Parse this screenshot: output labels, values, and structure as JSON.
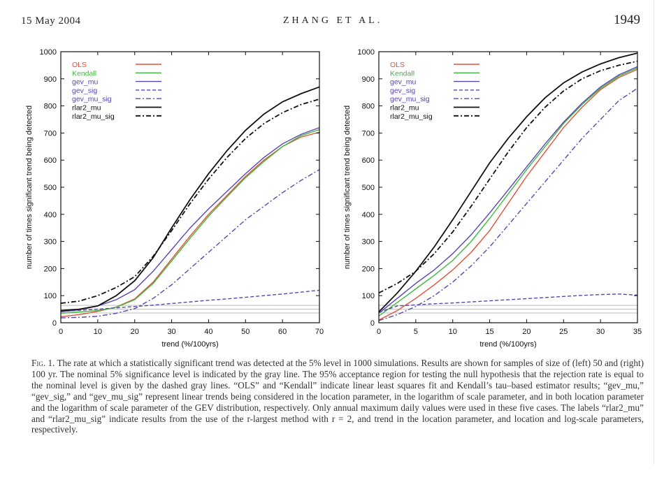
{
  "header": {
    "date": "15 May 2004",
    "authors": "ZHANG ET AL.",
    "page_number": "1949"
  },
  "colors": {
    "OLS": "#e0533a",
    "Kendall": "#3dbb3d",
    "gev": "#5a45b5",
    "rlar2": "#111111",
    "gray_lines": "#bdbdbd"
  },
  "chart_data": [
    {
      "type": "line",
      "xlabel": "trend (%/100yrs)",
      "ylabel": "number of times significant trend being detected",
      "xlim": [
        0,
        70
      ],
      "ylim": [
        0,
        1000
      ],
      "xticks": [
        0,
        10,
        20,
        30,
        40,
        50,
        60,
        70
      ],
      "yticks": [
        0,
        100,
        200,
        300,
        400,
        500,
        600,
        700,
        800,
        900,
        1000
      ],
      "gray_lines": [
        36,
        50,
        64
      ],
      "legend_position": "top-left",
      "series": [
        {
          "name": "OLS",
          "color_key": "OLS",
          "dash": "solid",
          "x": [
            0,
            5,
            10,
            15,
            20,
            25,
            30,
            35,
            40,
            45,
            50,
            55,
            60,
            65,
            70
          ],
          "y": [
            22,
            30,
            42,
            58,
            88,
            150,
            235,
            320,
            400,
            470,
            540,
            600,
            650,
            685,
            703
          ]
        },
        {
          "name": "Kendall",
          "color_key": "Kendall",
          "dash": "solid",
          "x": [
            0,
            5,
            10,
            15,
            20,
            25,
            30,
            35,
            40,
            45,
            50,
            55,
            60,
            65,
            70
          ],
          "y": [
            35,
            40,
            45,
            57,
            85,
            145,
            228,
            312,
            393,
            465,
            535,
            595,
            650,
            690,
            713
          ]
        },
        {
          "name": "gev_mu",
          "color_key": "gev",
          "dash": "solid",
          "x": [
            0,
            5,
            10,
            15,
            20,
            25,
            30,
            35,
            40,
            45,
            50,
            55,
            60,
            65,
            70
          ],
          "y": [
            40,
            48,
            62,
            85,
            122,
            190,
            270,
            350,
            420,
            485,
            550,
            610,
            660,
            695,
            720
          ]
        },
        {
          "name": "gev_sig",
          "color_key": "gev",
          "dash": "dashed",
          "x": [
            0,
            5,
            10,
            15,
            20,
            25,
            30,
            35,
            40,
            45,
            50,
            55,
            60,
            65,
            70
          ],
          "y": [
            42,
            46,
            50,
            55,
            60,
            65,
            71,
            77,
            83,
            88,
            94,
            100,
            106,
            113,
            120
          ]
        },
        {
          "name": "gev_mu_sig",
          "color_key": "gev",
          "dash": "dashdot",
          "x": [
            0,
            5,
            10,
            15,
            20,
            25,
            30,
            35,
            40,
            45,
            50,
            55,
            60,
            65,
            70
          ],
          "y": [
            18,
            20,
            24,
            35,
            52,
            90,
            140,
            200,
            260,
            320,
            380,
            430,
            480,
            525,
            565
          ]
        },
        {
          "name": "rlar2_mu",
          "color_key": "rlar2",
          "dash": "solid",
          "x": [
            0,
            5,
            10,
            15,
            20,
            25,
            30,
            35,
            40,
            45,
            50,
            55,
            60,
            65,
            70
          ],
          "y": [
            45,
            50,
            62,
            100,
            155,
            240,
            350,
            455,
            550,
            635,
            710,
            770,
            815,
            845,
            870
          ]
        },
        {
          "name": "rlar2_mu_sig",
          "color_key": "rlar2",
          "dash": "dashdot",
          "x": [
            0,
            5,
            10,
            15,
            20,
            25,
            30,
            35,
            40,
            45,
            50,
            55,
            60,
            65,
            70
          ],
          "y": [
            72,
            80,
            100,
            130,
            170,
            245,
            340,
            440,
            530,
            610,
            680,
            735,
            775,
            805,
            825
          ]
        }
      ]
    },
    {
      "type": "line",
      "xlabel": "trend (%/100yrs)",
      "ylabel": "number of times significant trend being detected",
      "xlim": [
        0,
        35
      ],
      "ylim": [
        0,
        1000
      ],
      "xticks": [
        0,
        5,
        10,
        15,
        20,
        25,
        30,
        35
      ],
      "yticks": [
        0,
        100,
        200,
        300,
        400,
        500,
        600,
        700,
        800,
        900,
        1000
      ],
      "gray_lines": [
        36,
        50,
        64
      ],
      "legend_position": "top-left",
      "series": [
        {
          "name": "OLS",
          "color_key": "OLS",
          "dash": "solid",
          "x": [
            0,
            2.5,
            5,
            7.5,
            10,
            12.5,
            15,
            17.5,
            20,
            22.5,
            25,
            27.5,
            30,
            32.5,
            35
          ],
          "y": [
            10,
            45,
            90,
            140,
            195,
            260,
            340,
            440,
            540,
            630,
            720,
            795,
            860,
            905,
            935
          ]
        },
        {
          "name": "Kendall",
          "color_key": "Kendall",
          "dash": "solid",
          "x": [
            0,
            2.5,
            5,
            7.5,
            10,
            12.5,
            15,
            17.5,
            20,
            22.5,
            25,
            27.5,
            30,
            32.5,
            35
          ],
          "y": [
            25,
            75,
            125,
            175,
            230,
            300,
            385,
            475,
            565,
            650,
            735,
            805,
            865,
            910,
            940
          ]
        },
        {
          "name": "gev_mu",
          "color_key": "gev",
          "dash": "solid",
          "x": [
            0,
            2.5,
            5,
            7.5,
            10,
            12.5,
            15,
            17.5,
            20,
            22.5,
            25,
            27.5,
            30,
            32.5,
            35
          ],
          "y": [
            35,
            90,
            145,
            195,
            255,
            325,
            405,
            490,
            575,
            660,
            740,
            810,
            870,
            915,
            945
          ]
        },
        {
          "name": "gev_sig",
          "color_key": "gev",
          "dash": "dashed",
          "x": [
            0,
            2.5,
            5,
            7.5,
            10,
            12.5,
            15,
            17.5,
            20,
            22.5,
            25,
            27.5,
            30,
            32.5,
            35
          ],
          "y": [
            38,
            62,
            66,
            70,
            73,
            77,
            81,
            85,
            89,
            93,
            97,
            101,
            104,
            106,
            102
          ]
        },
        {
          "name": "gev_mu_sig",
          "color_key": "gev",
          "dash": "dashdot",
          "x": [
            0,
            2.5,
            5,
            7.5,
            10,
            12.5,
            15,
            17.5,
            20,
            22.5,
            25,
            27.5,
            30,
            32.5,
            35
          ],
          "y": [
            8,
            30,
            60,
            100,
            150,
            210,
            280,
            360,
            440,
            520,
            600,
            680,
            750,
            820,
            865
          ]
        },
        {
          "name": "rlar2_mu",
          "color_key": "rlar2",
          "dash": "solid",
          "x": [
            0,
            2.5,
            5,
            7.5,
            10,
            12.5,
            15,
            17.5,
            20,
            22.5,
            25,
            27.5,
            30,
            32.5,
            35
          ],
          "y": [
            40,
            110,
            190,
            280,
            380,
            485,
            590,
            680,
            760,
            830,
            885,
            925,
            955,
            978,
            995
          ]
        },
        {
          "name": "rlar2_mu_sig",
          "color_key": "rlar2",
          "dash": "dashdot",
          "x": [
            0,
            2.5,
            5,
            7.5,
            10,
            12.5,
            15,
            17.5,
            20,
            22.5,
            25,
            27.5,
            30,
            32.5,
            35
          ],
          "y": [
            110,
            145,
            190,
            255,
            335,
            430,
            530,
            630,
            720,
            795,
            855,
            900,
            930,
            950,
            965
          ]
        }
      ]
    }
  ],
  "caption": {
    "fig_label": "Fig. 1.",
    "text": "The rate at which a statistically significant trend was detected at the 5% level in 1000 simulations. Results are shown for samples of size of (left) 50 and (right) 100 yr. The nominal 5% significance level is indicated by the gray line. The 95% acceptance region for testing the null hypothesis that the rejection rate is equal to the nominal level is given by the dashed gray lines. “OLS” and “Kendall” indicate linear least squares fit and Kendall’s tau–based estimator results; “gev_mu,” “gev_sig,” and “gev_mu_sig” represent linear trends being considered in the location parameter, in the logarithm of scale parameter, and in both location parameter and the logarithm of scale parameter of the GEV distribution, respectively. Only annual maximum daily values were used in these five cases. The labels “rlar2_mu” and “rlar2_mu_sig” indicate results from the use of the r-largest method with r = 2, and trend in the location parameter, and location and log-scale parameters, respectively."
  }
}
